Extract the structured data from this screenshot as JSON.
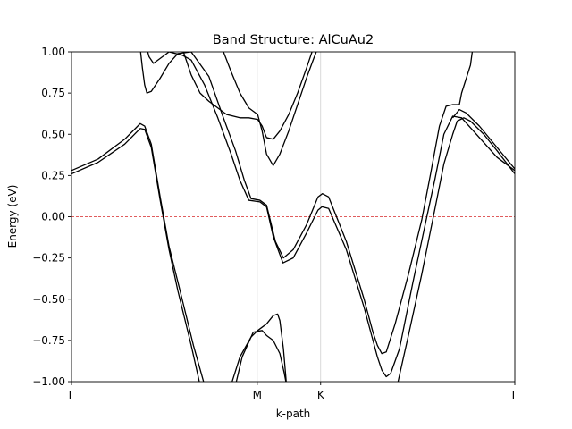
{
  "chart_data": {
    "type": "line",
    "title": "Band Structure: AlCuAu2",
    "xlabel": "k-path",
    "ylabel": "Energy (eV)",
    "ylim": [
      -1.0,
      1.0
    ],
    "xlim": [
      0,
      1
    ],
    "y_ticks": [
      "1.00",
      "0.75",
      "0.50",
      "0.25",
      "0.00",
      "−0.25",
      "−0.50",
      "−0.75",
      "−1.00"
    ],
    "y_tick_values": [
      1.0,
      0.75,
      0.5,
      0.25,
      0.0,
      -0.25,
      -0.5,
      -0.75,
      -1.0
    ],
    "high_symmetry_points": [
      {
        "label": "Γ",
        "x": 0.0
      },
      {
        "label": "M",
        "x": 0.419
      },
      {
        "label": "K",
        "x": 0.562
      },
      {
        "label": "Γ",
        "x": 1.0
      }
    ],
    "fermi_level": 0.0,
    "fermi_color": "#d62728",
    "line_color": "#000000",
    "grid": "vertical lines at high-symmetry points",
    "series": [
      {
        "values": [
          [
            0.0,
            0.26
          ],
          [
            0.06,
            0.33
          ],
          [
            0.12,
            0.44
          ],
          [
            0.155,
            0.535
          ],
          [
            0.165,
            0.53
          ],
          [
            0.18,
            0.42
          ],
          [
            0.2,
            0.1
          ],
          [
            0.22,
            -0.2
          ],
          [
            0.24,
            -0.45
          ],
          [
            0.27,
            -0.78
          ],
          [
            0.29,
            -1.02
          ]
        ]
      },
      {
        "values": [
          [
            0.0,
            0.28
          ],
          [
            0.06,
            0.35
          ],
          [
            0.12,
            0.47
          ],
          [
            0.155,
            0.565
          ],
          [
            0.165,
            0.55
          ],
          [
            0.18,
            0.44
          ],
          [
            0.2,
            0.12
          ],
          [
            0.22,
            -0.18
          ],
          [
            0.245,
            -0.45
          ],
          [
            0.275,
            -0.78
          ],
          [
            0.3,
            -1.02
          ]
        ]
      },
      {
        "values": [
          [
            0.155,
            1.02
          ],
          [
            0.16,
            0.9
          ],
          [
            0.165,
            0.8
          ],
          [
            0.17,
            0.75
          ],
          [
            0.18,
            0.76
          ],
          [
            0.2,
            0.84
          ],
          [
            0.22,
            0.93
          ],
          [
            0.24,
            0.99
          ],
          [
            0.27,
            1.0
          ],
          [
            0.31,
            0.85
          ],
          [
            0.34,
            0.62
          ],
          [
            0.37,
            0.4
          ],
          [
            0.39,
            0.22
          ],
          [
            0.405,
            0.11
          ],
          [
            0.425,
            0.1
          ],
          [
            0.44,
            0.07
          ],
          [
            0.46,
            -0.15
          ],
          [
            0.478,
            -0.25
          ],
          [
            0.5,
            -0.2
          ],
          [
            0.53,
            -0.05
          ],
          [
            0.556,
            0.12
          ],
          [
            0.566,
            0.14
          ],
          [
            0.58,
            0.12
          ],
          [
            0.62,
            -0.15
          ],
          [
            0.66,
            -0.5
          ],
          [
            0.68,
            -0.7
          ],
          [
            0.69,
            -0.78
          ],
          [
            0.7,
            -0.83
          ],
          [
            0.71,
            -0.82
          ],
          [
            0.73,
            -0.65
          ],
          [
            0.76,
            -0.35
          ],
          [
            0.79,
            -0.02
          ],
          [
            0.81,
            0.26
          ],
          [
            0.83,
            0.55
          ],
          [
            0.845,
            0.67
          ],
          [
            0.86,
            0.68
          ],
          [
            0.875,
            0.68
          ],
          [
            0.88,
            0.75
          ],
          [
            0.9,
            0.92
          ],
          [
            0.905,
            1.02
          ]
        ]
      },
      {
        "values": [
          [
            0.17,
            1.02
          ],
          [
            0.175,
            0.97
          ],
          [
            0.185,
            0.93
          ],
          [
            0.2,
            0.96
          ],
          [
            0.22,
            1.0
          ],
          [
            0.25,
            0.98
          ],
          [
            0.27,
            0.95
          ],
          [
            0.3,
            0.8
          ],
          [
            0.33,
            0.6
          ],
          [
            0.36,
            0.38
          ],
          [
            0.38,
            0.22
          ],
          [
            0.4,
            0.1
          ],
          [
            0.425,
            0.09
          ],
          [
            0.44,
            0.06
          ],
          [
            0.455,
            -0.12
          ],
          [
            0.477,
            -0.28
          ],
          [
            0.5,
            -0.25
          ],
          [
            0.53,
            -0.1
          ],
          [
            0.556,
            0.04
          ],
          [
            0.565,
            0.06
          ],
          [
            0.58,
            0.05
          ],
          [
            0.62,
            -0.2
          ],
          [
            0.66,
            -0.55
          ],
          [
            0.68,
            -0.75
          ],
          [
            0.69,
            -0.85
          ],
          [
            0.7,
            -0.93
          ],
          [
            0.71,
            -0.97
          ],
          [
            0.72,
            -0.95
          ],
          [
            0.74,
            -0.8
          ],
          [
            0.77,
            -0.4
          ],
          [
            0.8,
            -0.02
          ],
          [
            0.82,
            0.23
          ],
          [
            0.84,
            0.5
          ],
          [
            0.86,
            0.61
          ],
          [
            0.88,
            0.6
          ],
          [
            0.92,
            0.48
          ],
          [
            0.96,
            0.36
          ],
          [
            1.0,
            0.28
          ]
        ]
      },
      {
        "values": [
          [
            0.25,
            1.02
          ],
          [
            0.27,
            0.86
          ],
          [
            0.29,
            0.75
          ],
          [
            0.31,
            0.7
          ],
          [
            0.33,
            0.66
          ],
          [
            0.35,
            0.62
          ],
          [
            0.38,
            0.6
          ],
          [
            0.4,
            0.6
          ],
          [
            0.42,
            0.59
          ],
          [
            0.43,
            0.55
          ],
          [
            0.44,
            0.48
          ],
          [
            0.455,
            0.47
          ],
          [
            0.47,
            0.52
          ],
          [
            0.49,
            0.62
          ],
          [
            0.51,
            0.75
          ],
          [
            0.53,
            0.9
          ],
          [
            0.545,
            1.02
          ]
        ]
      },
      {
        "values": [
          [
            0.34,
            1.02
          ],
          [
            0.36,
            0.88
          ],
          [
            0.38,
            0.75
          ],
          [
            0.4,
            0.66
          ],
          [
            0.42,
            0.62
          ],
          [
            0.43,
            0.52
          ],
          [
            0.44,
            0.38
          ],
          [
            0.455,
            0.31
          ],
          [
            0.47,
            0.38
          ],
          [
            0.49,
            0.52
          ],
          [
            0.51,
            0.68
          ],
          [
            0.53,
            0.84
          ],
          [
            0.545,
            0.95
          ],
          [
            0.555,
            1.02
          ]
        ]
      },
      {
        "values": [
          [
            0.37,
            -1.02
          ],
          [
            0.385,
            -0.85
          ],
          [
            0.41,
            -0.7
          ],
          [
            0.43,
            -0.69
          ],
          [
            0.44,
            -0.72
          ],
          [
            0.455,
            -0.75
          ],
          [
            0.47,
            -0.83
          ],
          [
            0.48,
            -0.95
          ],
          [
            0.485,
            -1.02
          ]
        ]
      },
      {
        "values": [
          [
            0.36,
            -1.02
          ],
          [
            0.38,
            -0.85
          ],
          [
            0.405,
            -0.73
          ],
          [
            0.42,
            -0.69
          ],
          [
            0.44,
            -0.65
          ],
          [
            0.455,
            -0.6
          ],
          [
            0.465,
            -0.59
          ],
          [
            0.47,
            -0.63
          ],
          [
            0.478,
            -0.8
          ],
          [
            0.485,
            -1.02
          ]
        ]
      },
      {
        "values": [
          [
            0.735,
            -1.02
          ],
          [
            0.76,
            -0.72
          ],
          [
            0.79,
            -0.35
          ],
          [
            0.82,
            0.05
          ],
          [
            0.84,
            0.32
          ],
          [
            0.86,
            0.5
          ],
          [
            0.87,
            0.58
          ],
          [
            0.885,
            0.6
          ],
          [
            0.9,
            0.58
          ],
          [
            0.93,
            0.5
          ],
          [
            0.96,
            0.4
          ],
          [
            1.0,
            0.26
          ]
        ]
      },
      {
        "values": [
          [
            0.86,
            0.6
          ],
          [
            0.875,
            0.65
          ],
          [
            0.89,
            0.63
          ],
          [
            0.92,
            0.55
          ],
          [
            0.96,
            0.42
          ],
          [
            1.0,
            0.29
          ]
        ]
      }
    ]
  }
}
